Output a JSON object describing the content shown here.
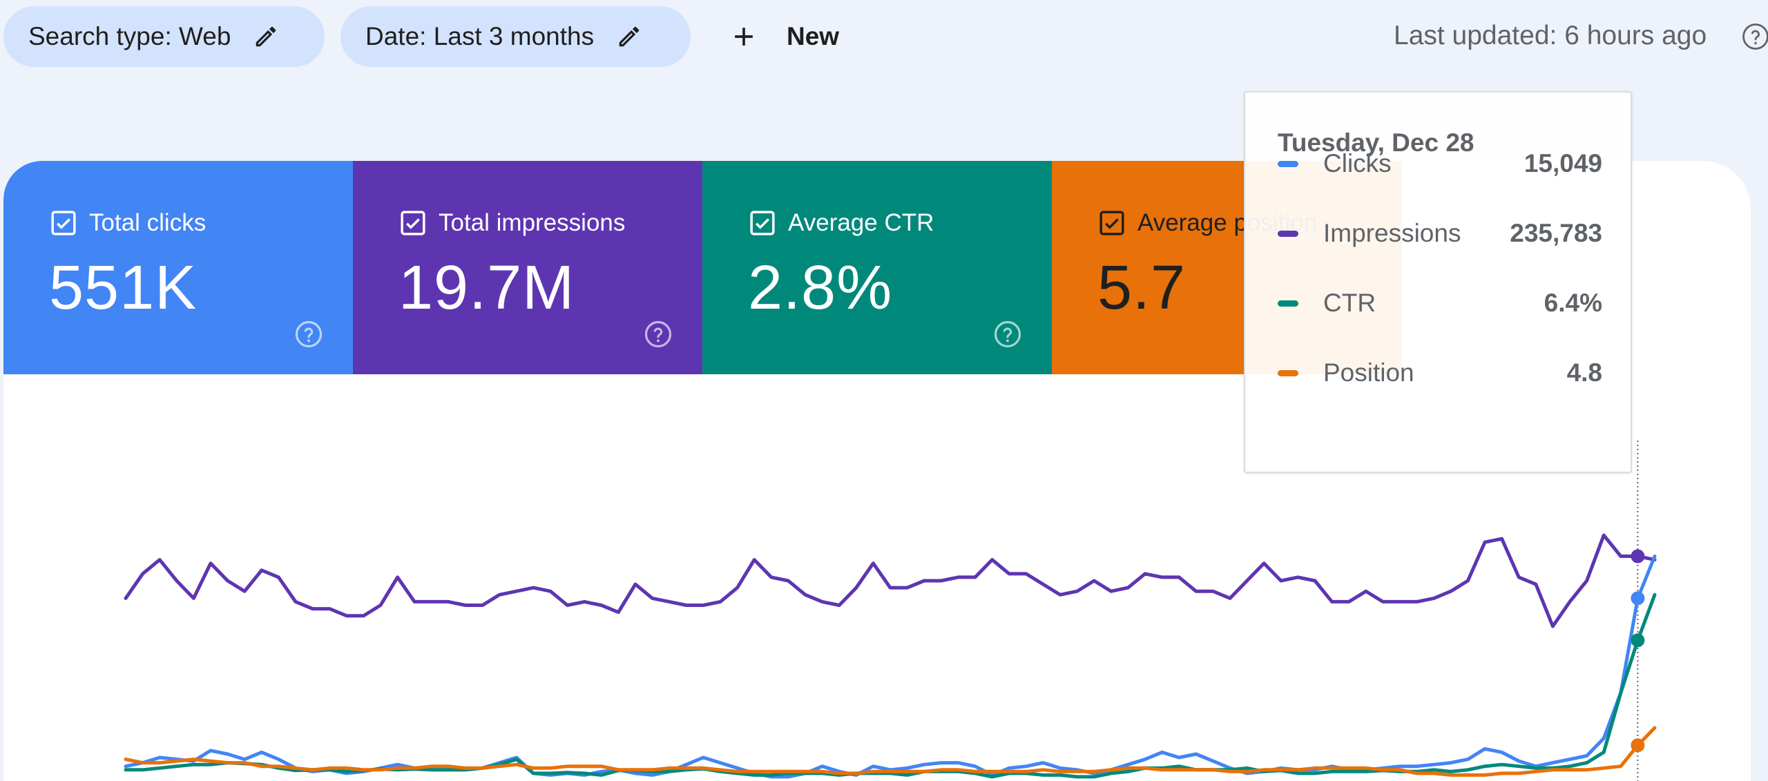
{
  "filters": {
    "search_type": "Search type: Web",
    "date": "Date: Last 3 months",
    "new_label": "New"
  },
  "last_updated": "Last updated: 6 hours ago",
  "metrics": {
    "clicks": {
      "label": "Total clicks",
      "value": "551K",
      "color": "#4285f4"
    },
    "impressions": {
      "label": "Total impressions",
      "value": "19.7M",
      "color": "#5e35b1"
    },
    "ctr": {
      "label": "Average CTR",
      "value": "2.8%",
      "color": "#00897b"
    },
    "position": {
      "label": "Average position",
      "value": "5.7",
      "color": "#e8710a"
    }
  },
  "tooltip": {
    "date": "Tuesday, Dec 28",
    "rows": [
      {
        "name": "Clicks",
        "value": "15,049",
        "color": "#4285f4"
      },
      {
        "name": "Impressions",
        "value": "235,783",
        "color": "#5e35b1"
      },
      {
        "name": "CTR",
        "value": "6.4%",
        "color": "#00897b"
      },
      {
        "name": "Position",
        "value": "4.8",
        "color": "#e8710a"
      }
    ]
  },
  "chart_data": {
    "type": "line",
    "axes_visible": false,
    "gridlines": false,
    "normalized": true,
    "hover_index": 89,
    "series": [
      {
        "name": "Impressions",
        "color": "#5e35b1",
        "values": [
          0.52,
          0.59,
          0.63,
          0.57,
          0.52,
          0.62,
          0.57,
          0.54,
          0.6,
          0.58,
          0.51,
          0.49,
          0.49,
          0.47,
          0.47,
          0.5,
          0.58,
          0.51,
          0.51,
          0.51,
          0.5,
          0.5,
          0.53,
          0.54,
          0.55,
          0.54,
          0.5,
          0.51,
          0.5,
          0.48,
          0.56,
          0.52,
          0.51,
          0.5,
          0.5,
          0.51,
          0.55,
          0.63,
          0.58,
          0.57,
          0.53,
          0.51,
          0.5,
          0.55,
          0.62,
          0.55,
          0.55,
          0.57,
          0.57,
          0.58,
          0.58,
          0.63,
          0.59,
          0.59,
          0.56,
          0.53,
          0.54,
          0.57,
          0.54,
          0.55,
          0.59,
          0.58,
          0.58,
          0.54,
          0.54,
          0.52,
          0.57,
          0.62,
          0.57,
          0.58,
          0.57,
          0.51,
          0.51,
          0.54,
          0.51,
          0.51,
          0.51,
          0.52,
          0.54,
          0.57,
          0.68,
          0.69,
          0.58,
          0.56,
          0.44,
          0.51,
          0.57,
          0.7,
          0.64,
          0.64,
          0.63
        ]
      },
      {
        "name": "Clicks",
        "color": "#4285f4",
        "values": [
          0.04,
          0.05,
          0.065,
          0.06,
          0.055,
          0.085,
          0.075,
          0.06,
          0.08,
          0.06,
          0.035,
          0.025,
          0.03,
          0.02,
          0.025,
          0.035,
          0.045,
          0.035,
          0.03,
          0.03,
          0.03,
          0.035,
          0.05,
          0.065,
          0.02,
          0.015,
          0.02,
          0.015,
          0.025,
          0.03,
          0.02,
          0.015,
          0.025,
          0.045,
          0.065,
          0.05,
          0.035,
          0.02,
          0.01,
          0.01,
          0.02,
          0.04,
          0.025,
          0.015,
          0.04,
          0.03,
          0.035,
          0.045,
          0.05,
          0.05,
          0.04,
          0.015,
          0.035,
          0.04,
          0.05,
          0.035,
          0.03,
          0.02,
          0.03,
          0.045,
          0.06,
          0.08,
          0.065,
          0.075,
          0.055,
          0.035,
          0.02,
          0.025,
          0.035,
          0.03,
          0.03,
          0.04,
          0.03,
          0.03,
          0.035,
          0.04,
          0.04,
          0.045,
          0.05,
          0.06,
          0.09,
          0.08,
          0.055,
          0.04,
          0.05,
          0.06,
          0.07,
          0.12,
          0.25,
          0.52,
          0.64
        ]
      },
      {
        "name": "CTR",
        "color": "#00897b",
        "values": [
          0.03,
          0.03,
          0.035,
          0.04,
          0.045,
          0.045,
          0.05,
          0.048,
          0.045,
          0.035,
          0.028,
          0.03,
          0.03,
          0.025,
          0.028,
          0.032,
          0.03,
          0.032,
          0.03,
          0.03,
          0.03,
          0.035,
          0.045,
          0.06,
          0.02,
          0.02,
          0.022,
          0.02,
          0.015,
          0.028,
          0.028,
          0.025,
          0.025,
          0.03,
          0.033,
          0.025,
          0.02,
          0.015,
          0.015,
          0.02,
          0.02,
          0.02,
          0.015,
          0.02,
          0.02,
          0.02,
          0.015,
          0.025,
          0.025,
          0.025,
          0.02,
          0.01,
          0.02,
          0.02,
          0.015,
          0.015,
          0.01,
          0.01,
          0.02,
          0.025,
          0.035,
          0.035,
          0.04,
          0.03,
          0.03,
          0.03,
          0.035,
          0.025,
          0.028,
          0.02,
          0.02,
          0.025,
          0.025,
          0.025,
          0.028,
          0.025,
          0.025,
          0.03,
          0.025,
          0.03,
          0.04,
          0.045,
          0.04,
          0.035,
          0.035,
          0.04,
          0.05,
          0.08,
          0.25,
          0.4,
          0.53
        ]
      },
      {
        "name": "Position",
        "color": "#e8710a",
        "values": [
          0.06,
          0.05,
          0.05,
          0.055,
          0.06,
          0.055,
          0.05,
          0.05,
          0.04,
          0.04,
          0.035,
          0.03,
          0.035,
          0.035,
          0.03,
          0.03,
          0.035,
          0.035,
          0.04,
          0.04,
          0.035,
          0.035,
          0.04,
          0.045,
          0.035,
          0.035,
          0.04,
          0.04,
          0.04,
          0.03,
          0.03,
          0.03,
          0.035,
          0.035,
          0.035,
          0.03,
          0.025,
          0.025,
          0.025,
          0.025,
          0.025,
          0.025,
          0.02,
          0.02,
          0.025,
          0.025,
          0.025,
          0.025,
          0.03,
          0.03,
          0.025,
          0.025,
          0.025,
          0.025,
          0.03,
          0.025,
          0.025,
          0.025,
          0.03,
          0.035,
          0.035,
          0.03,
          0.03,
          0.03,
          0.03,
          0.025,
          0.025,
          0.03,
          0.03,
          0.03,
          0.035,
          0.035,
          0.035,
          0.035,
          0.03,
          0.03,
          0.02,
          0.02,
          0.015,
          0.015,
          0.015,
          0.02,
          0.02,
          0.025,
          0.03,
          0.03,
          0.03,
          0.035,
          0.04,
          0.1,
          0.15
        ]
      }
    ]
  }
}
